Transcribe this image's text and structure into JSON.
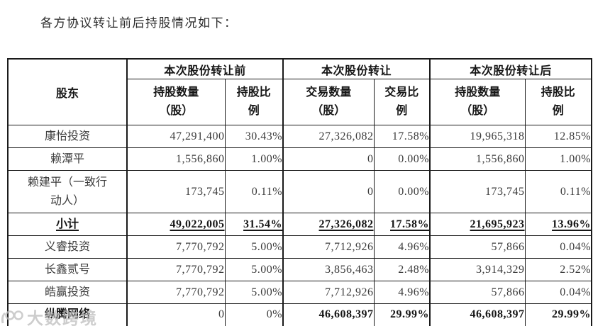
{
  "title": "各方协议转让前后持股情况如下：",
  "table": {
    "shareholder_header": "股东",
    "col_groups": [
      {
        "label": "本次股份转让前"
      },
      {
        "label": "本次股份转让"
      },
      {
        "label": "本次股份转让后"
      }
    ],
    "sub_headers": [
      "持股数量\n（股）",
      "持股比\n例",
      "交易数量\n（股）",
      "交易比\n例",
      "持股数量\n（股）",
      "持股比\n例"
    ],
    "rows": [
      {
        "name": "康怡投资",
        "cells": [
          "47,291,400",
          "30.43%",
          "27,326,082",
          "17.58%",
          "19,965,318",
          "12.85%"
        ],
        "style": "normal"
      },
      {
        "name": "赖潭平",
        "cells": [
          "1,556,860",
          "1.00%",
          "0",
          "0.00%",
          "1,556,860",
          "1.00%"
        ],
        "style": "normal"
      },
      {
        "name": "赖建平（一致行\n动人）",
        "cells": [
          "173,745",
          "0.11%",
          "0",
          "0.00%",
          "173,745",
          "0.11%"
        ],
        "style": "normal",
        "tall": true
      },
      {
        "name": "小计",
        "cells": [
          "49,022,005",
          "31.54%",
          "27,326,082",
          "17.58%",
          "21,695,923",
          "13.96%"
        ],
        "style": "subtotal"
      },
      {
        "name": "义睿投资",
        "cells": [
          "7,770,792",
          "5.00%",
          "7,712,926",
          "4.96%",
          "57,866",
          "0.04%"
        ],
        "style": "normal"
      },
      {
        "name": "长鑫贰号",
        "cells": [
          "7,770,792",
          "5.00%",
          "3,856,463",
          "2.48%",
          "3,914,329",
          "2.52%"
        ],
        "style": "normal"
      },
      {
        "name": "皓赢投资",
        "cells": [
          "7,770,792",
          "5.00%",
          "7,712,926",
          "4.96%",
          "57,866",
          "0.04%"
        ],
        "style": "normal"
      },
      {
        "name": "纵腾网络",
        "cells": [
          "0",
          "0%",
          "46,608,397",
          "29.99%",
          "46,608,397",
          "29.99%"
        ],
        "style": "total",
        "bold_cells": [
          false,
          false,
          true,
          true,
          true,
          true
        ]
      }
    ]
  },
  "watermark": {
    "text": "大数跨境",
    "icon": "watermark-logo-icon",
    "color": "#bdbdbd"
  }
}
